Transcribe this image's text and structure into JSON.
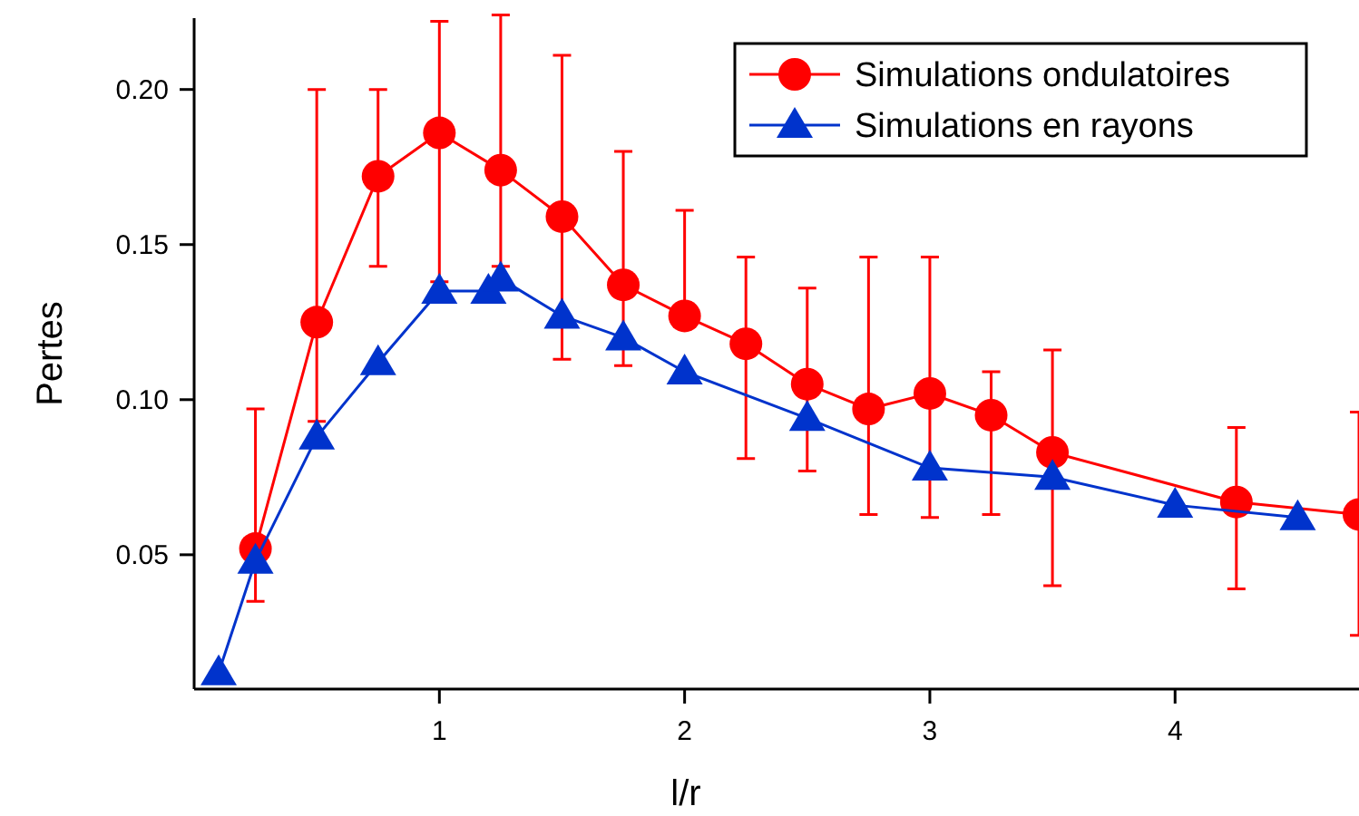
{
  "chart_data": {
    "type": "line",
    "xlabel": "l/r",
    "ylabel": "Pertes",
    "xlim": [
      0,
      4.75
    ],
    "ylim": [
      0.0067,
      0.223
    ],
    "xticks": [
      1,
      2,
      3,
      4
    ],
    "yticks": [
      {
        "value": 0.05,
        "label": "0.05"
      },
      {
        "value": 0.1,
        "label": "0.10"
      },
      {
        "value": 0.15,
        "label": "0.15"
      },
      {
        "value": 0.2,
        "label": "0.20"
      }
    ],
    "legend": "top right",
    "grid": false,
    "series": [
      {
        "name": "Simulations ondulatoires",
        "color": "#ff0000",
        "marker": "circle",
        "x": [
          0.25,
          0.5,
          0.75,
          1,
          1.25,
          1.5,
          1.75,
          2,
          2.25,
          2.5,
          2.75,
          3,
          3.25,
          3.5,
          4.25,
          4.75
        ],
        "values": [
          0.052,
          0.125,
          0.172,
          0.186,
          0.174,
          0.159,
          0.137,
          0.127,
          0.118,
          0.105,
          0.097,
          0.102,
          0.095,
          0.083,
          0.067,
          0.063
        ],
        "errors": [
          [
            0.035,
            0.097
          ],
          [
            0.093,
            0.2
          ],
          [
            0.143,
            0.2
          ],
          [
            0.138,
            0.222
          ],
          [
            0.143,
            0.224
          ],
          [
            0.113,
            0.211
          ],
          [
            0.111,
            0.18
          ],
          [
            0.127,
            0.161
          ],
          [
            0.081,
            0.146
          ],
          [
            0.077,
            0.136
          ],
          [
            0.063,
            0.146
          ],
          [
            0.062,
            0.146
          ],
          [
            0.063,
            0.109
          ],
          [
            0.04,
            0.116
          ],
          [
            0.039,
            0.091
          ],
          [
            0.024,
            0.096
          ]
        ]
      },
      {
        "name": "Simulations en rayons",
        "color": "#0033cc",
        "marker": "triangle",
        "x": [
          0.1,
          0.25,
          0.5,
          0.75,
          1,
          1.2,
          1.25,
          1.5,
          1.75,
          2,
          2.5,
          3,
          3.5,
          4,
          4.5
        ],
        "values": [
          0.012,
          0.048,
          0.088,
          0.112,
          0.135,
          0.135,
          0.139,
          0.127,
          0.12,
          0.109,
          0.094,
          0.078,
          0.075,
          0.066,
          0.062
        ]
      }
    ]
  }
}
